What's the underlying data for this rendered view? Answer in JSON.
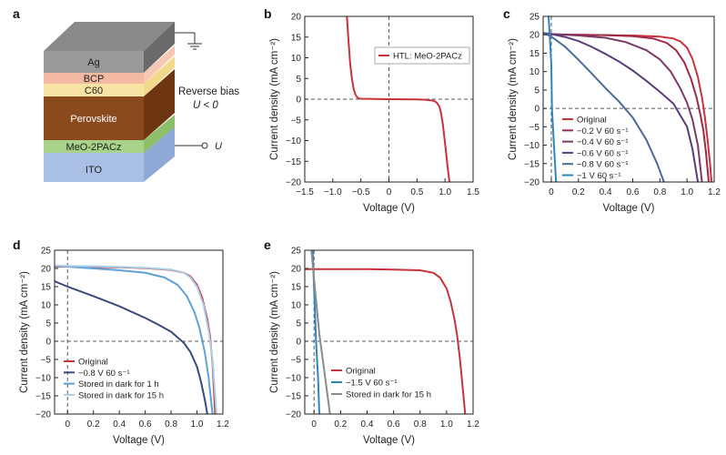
{
  "panels": {
    "a": {
      "label": "a",
      "layers": [
        "Ag",
        "BCP",
        "C60",
        "Perovskite",
        "MeO-2PACz",
        "ITO"
      ],
      "bias_text": "Reverse bias",
      "bias_cond": "U < 0",
      "terminal": "U"
    }
  },
  "chart_data": [
    {
      "panel": "b",
      "type": "line",
      "xlabel": "Voltage (V)",
      "ylabel": "Current density (mA cm⁻²)",
      "xlim": [
        -1.5,
        1.5
      ],
      "ylim": [
        -20,
        20
      ],
      "xticks": [
        -1.5,
        -1.0,
        -0.5,
        0,
        0.5,
        1.0,
        1.5
      ],
      "xticklabels": [
        "−1.5",
        "−1.0",
        "−0.5",
        "0",
        "0.5",
        "1.0",
        "1.5"
      ],
      "yticks": [
        -20,
        -15,
        -10,
        -5,
        0,
        5,
        10,
        15,
        20
      ],
      "yticklabels": [
        "−20",
        "−15",
        "−10",
        "−5",
        "0",
        "5",
        "10",
        "15",
        "20"
      ],
      "legend_position": "top-right",
      "series": [
        {
          "name": "HTL: MeO-2PACz",
          "color": "#c8323a",
          "x": [
            -0.75,
            -0.72,
            -0.69,
            -0.66,
            -0.63,
            -0.6,
            -0.57,
            -0.54,
            -0.5,
            0,
            0.5,
            0.6,
            0.7,
            0.8,
            0.85,
            0.9,
            0.93,
            0.96,
            0.99,
            1.02,
            1.05,
            1.08
          ],
          "y": [
            20,
            14,
            8.5,
            5,
            2.6,
            1.2,
            0.5,
            0.2,
            0.1,
            0,
            -0.05,
            -0.1,
            -0.2,
            -0.4,
            -0.8,
            -1.8,
            -3.5,
            -6,
            -9.5,
            -13,
            -17,
            -20
          ]
        }
      ]
    },
    {
      "panel": "c",
      "type": "line",
      "xlabel": "Voltage (V)",
      "ylabel": "Current density (mA cm⁻²)",
      "xlim": [
        -0.06,
        1.2
      ],
      "ylim": [
        -20,
        25
      ],
      "xticks": [
        0,
        0.2,
        0.4,
        0.6,
        0.8,
        1.0,
        1.2
      ],
      "xticklabels": [
        "0",
        "0.2",
        "0.4",
        "0.6",
        "0.8",
        "1.0",
        "1.2"
      ],
      "yticks": [
        -20,
        -15,
        -10,
        -5,
        0,
        5,
        10,
        15,
        20,
        25
      ],
      "yticklabels": [
        "−20",
        "−15",
        "−10",
        "−5",
        "0",
        "5",
        "10",
        "15",
        "20",
        "25"
      ],
      "legend_position": "bottom-left",
      "series": [
        {
          "name": "Original",
          "color": "#c8323a",
          "x": [
            -0.06,
            0,
            0.2,
            0.4,
            0.6,
            0.8,
            0.9,
            0.95,
            1.0,
            1.04,
            1.08,
            1.11,
            1.13,
            1.15,
            1.17,
            1.18
          ],
          "y": [
            20.2,
            20.1,
            20.0,
            19.9,
            19.8,
            19.5,
            19.0,
            18.2,
            16.5,
            13.5,
            8.5,
            3.0,
            -2,
            -8,
            -15,
            -20
          ]
        },
        {
          "name": "−0.2 V 60 s⁻¹",
          "color": "#9c2a48",
          "x": [
            -0.06,
            0,
            0.2,
            0.4,
            0.6,
            0.75,
            0.85,
            0.92,
            0.98,
            1.03,
            1.07,
            1.1,
            1.12,
            1.14,
            1.16
          ],
          "y": [
            20.2,
            20.1,
            20.0,
            19.9,
            19.6,
            19.0,
            17.8,
            15.8,
            12.5,
            8,
            3,
            -2,
            -6,
            -12,
            -20
          ]
        },
        {
          "name": "−0.4 V 60 s⁻¹",
          "color": "#7a3a68",
          "x": [
            -0.06,
            0,
            0.2,
            0.4,
            0.55,
            0.7,
            0.8,
            0.88,
            0.95,
            1.0,
            1.04,
            1.08,
            1.11
          ],
          "y": [
            20.3,
            20.2,
            19.8,
            19.2,
            18.0,
            15.8,
            13.3,
            10.0,
            5.5,
            1.5,
            -3,
            -10,
            -20
          ]
        },
        {
          "name": "−0.6 V 60 s⁻¹",
          "color": "#5a3c78",
          "x": [
            -0.06,
            0,
            0.1,
            0.2,
            0.3,
            0.4,
            0.5,
            0.6,
            0.7,
            0.8,
            0.9,
            1.0,
            1.04,
            1.08
          ],
          "y": [
            20.5,
            20.2,
            19.4,
            18.3,
            16.7,
            14.8,
            12.7,
            10.3,
            7.5,
            4.5,
            1.3,
            -5,
            -11,
            -20
          ]
        },
        {
          "name": "−0.8 V 60 s⁻¹",
          "color": "#4a6a9a",
          "x": [
            -0.06,
            0,
            0.1,
            0.2,
            0.3,
            0.4,
            0.5,
            0.6,
            0.7,
            0.78,
            0.83
          ],
          "y": [
            20.5,
            19.5,
            16.8,
            13.2,
            9.4,
            5.5,
            1.8,
            -2.5,
            -8.5,
            -15,
            -20
          ]
        },
        {
          "name": "−1 V 60 s⁻¹",
          "color": "#2e86c1",
          "x": [
            -0.02,
            0,
            0.005,
            0.02,
            0.035
          ],
          "y": [
            25,
            12,
            0,
            -10,
            -20
          ]
        }
      ]
    },
    {
      "panel": "d",
      "type": "line",
      "xlabel": "Voltage (V)",
      "ylabel": "Current density (mA cm⁻²)",
      "xlim": [
        -0.1,
        1.2
      ],
      "ylim": [
        -20,
        25
      ],
      "xticks": [
        0,
        0.2,
        0.4,
        0.6,
        0.8,
        1.0,
        1.2
      ],
      "xticklabels": [
        "0",
        "0.2",
        "0.4",
        "0.6",
        "0.8",
        "1.0",
        "1.2"
      ],
      "yticks": [
        -20,
        -15,
        -10,
        -5,
        0,
        5,
        10,
        15,
        20,
        25
      ],
      "yticklabels": [
        "−20",
        "−15",
        "−10",
        "−5",
        "0",
        "5",
        "10",
        "15",
        "20",
        "25"
      ],
      "legend_position": "bottom-left",
      "series": [
        {
          "name": "Original",
          "color": "#c8323a",
          "x": [
            -0.1,
            0,
            0.2,
            0.4,
            0.6,
            0.8,
            0.9,
            0.95,
            1.0,
            1.04,
            1.08,
            1.1,
            1.12,
            1.14
          ],
          "y": [
            20.5,
            20.5,
            20.4,
            20.3,
            20.1,
            19.6,
            18.8,
            17.8,
            15.5,
            12.0,
            6.0,
            1.5,
            -6,
            -20
          ]
        },
        {
          "name": "−0.8 V 60 s⁻¹",
          "color": "#3a4a7a",
          "x": [
            -0.1,
            0,
            0.2,
            0.4,
            0.6,
            0.7,
            0.8,
            0.9,
            0.95,
            1.0,
            1.03,
            1.06,
            1.08
          ],
          "y": [
            16.5,
            15.0,
            12.4,
            9.6,
            6.4,
            4.6,
            2.6,
            -0.5,
            -3.0,
            -7.0,
            -11,
            -16,
            -20
          ]
        },
        {
          "name": "Stored in dark for 1 h",
          "color": "#5fa0d8",
          "x": [
            -0.1,
            0,
            0.2,
            0.4,
            0.6,
            0.75,
            0.85,
            0.92,
            0.98,
            1.02,
            1.06,
            1.09,
            1.12
          ],
          "y": [
            20.7,
            20.5,
            20.0,
            19.5,
            18.8,
            17.5,
            15.5,
            12.5,
            8.0,
            3.5,
            -3,
            -10,
            -20
          ]
        },
        {
          "name": "Stored in dark for 15 h",
          "color": "#a9cfe8",
          "x": [
            -0.1,
            0,
            0.2,
            0.4,
            0.6,
            0.8,
            0.9,
            0.95,
            1.0,
            1.05,
            1.09,
            1.12,
            1.15
          ],
          "y": [
            20.8,
            20.7,
            20.6,
            20.4,
            20.2,
            19.7,
            18.8,
            17.5,
            15.0,
            10.0,
            3.0,
            -5,
            -20
          ]
        }
      ]
    },
    {
      "panel": "e",
      "type": "line",
      "xlabel": "Voltage (V)",
      "ylabel": "Current density (mA cm⁻²)",
      "xlim": [
        -0.07,
        1.2
      ],
      "ylim": [
        -20,
        25
      ],
      "xticks": [
        0,
        0.2,
        0.4,
        0.6,
        0.8,
        1.0,
        1.2
      ],
      "xticklabels": [
        "0",
        "0.2",
        "0.4",
        "0.6",
        "0.8",
        "1.0",
        "1.2"
      ],
      "yticks": [
        -20,
        -15,
        -10,
        -5,
        0,
        5,
        10,
        15,
        20,
        25
      ],
      "yticklabels": [
        "−20",
        "−15",
        "−10",
        "−5",
        "0",
        "5",
        "10",
        "15",
        "20",
        "25"
      ],
      "legend_position": "bottom-left",
      "series": [
        {
          "name": "Original",
          "color": "#c8323a",
          "x": [
            -0.07,
            0,
            0.2,
            0.4,
            0.6,
            0.8,
            0.9,
            0.95,
            1.0,
            1.03,
            1.06,
            1.08,
            1.1,
            1.12,
            1.14
          ],
          "y": [
            19.8,
            19.8,
            19.8,
            19.8,
            19.7,
            19.5,
            18.8,
            17.5,
            14.5,
            11.0,
            6.0,
            1.5,
            -4.5,
            -12,
            -20
          ]
        },
        {
          "name": "−1.5 V 60 s⁻¹",
          "color": "#2e86c1",
          "x": [
            -0.01,
            0.005,
            0.015,
            0.03,
            0.04
          ],
          "y": [
            25,
            10,
            0,
            -10,
            -20
          ]
        },
        {
          "name": "Stored in dark for 15 h",
          "color": "#8a8a8a",
          "x": [
            -0.02,
            0.0,
            0.04,
            0.08,
            0.12
          ],
          "y": [
            25,
            17,
            2,
            -9,
            -20
          ]
        }
      ]
    }
  ]
}
